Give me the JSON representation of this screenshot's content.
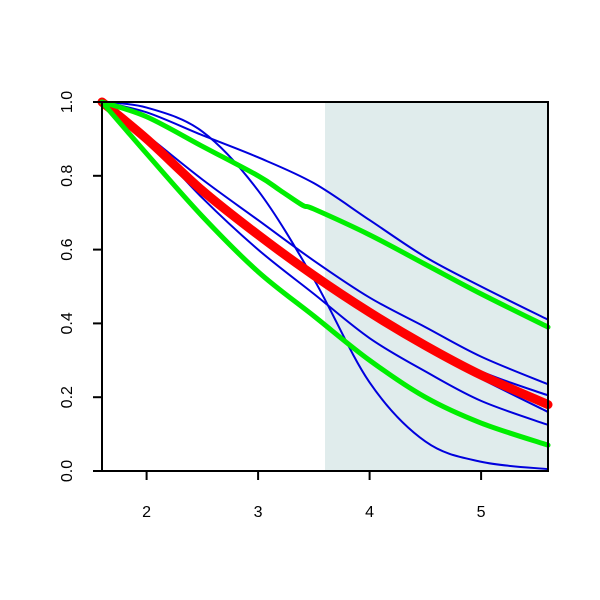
{
  "chart_data": {
    "type": "line",
    "title": "",
    "xlabel": "",
    "ylabel": "",
    "xlim": [
      1.6,
      5.6
    ],
    "ylim": [
      0.0,
      1.0
    ],
    "x_ticks": [
      2,
      3,
      4,
      5
    ],
    "x_tick_labels": [
      "2",
      "3",
      "4",
      "5"
    ],
    "y_ticks": [
      0.0,
      0.2,
      0.4,
      0.6,
      0.8,
      1.0
    ],
    "y_tick_labels": [
      "0.0",
      "0.2",
      "0.4",
      "0.6",
      "0.8",
      "1.0"
    ],
    "grid": false,
    "legend": "none",
    "shaded_region": {
      "x_from": 3.6,
      "x_to": 5.6,
      "color": "#e0ecec"
    },
    "series": [
      {
        "color": "#0000dd",
        "x": [
          1.6,
          2.0,
          2.5,
          3.0,
          3.5,
          4.0,
          4.5,
          5.0,
          5.6
        ],
        "values": [
          1.0,
          0.972,
          0.91,
          0.85,
          0.78,
          0.68,
          0.58,
          0.5,
          0.41
        ]
      },
      {
        "color": "#0000dd",
        "x": [
          1.6,
          2.0,
          2.5,
          3.0,
          3.5,
          4.0,
          4.5,
          5.0,
          5.6
        ],
        "values": [
          1.0,
          0.91,
          0.79,
          0.68,
          0.57,
          0.47,
          0.39,
          0.31,
          0.235
        ]
      },
      {
        "color": "#0000dd",
        "x": [
          1.6,
          2.0,
          2.5,
          3.0,
          3.5,
          4.0,
          4.5,
          5.0,
          5.6
        ],
        "values": [
          1.0,
          0.91,
          0.77,
          0.65,
          0.54,
          0.44,
          0.35,
          0.27,
          0.205
        ]
      },
      {
        "color": "#0000dd",
        "x": [
          1.6,
          2.0,
          2.5,
          3.0,
          3.5,
          4.0,
          4.5,
          5.0,
          5.6
        ],
        "values": [
          1.0,
          0.9,
          0.76,
          0.63,
          0.52,
          0.42,
          0.33,
          0.25,
          0.16
        ]
      },
      {
        "color": "#0000dd",
        "x": [
          1.6,
          2.0,
          2.5,
          3.0,
          3.5,
          4.0,
          4.5,
          5.0,
          5.6
        ],
        "values": [
          1.0,
          0.9,
          0.74,
          0.6,
          0.48,
          0.36,
          0.27,
          0.19,
          0.125
        ]
      },
      {
        "color": "#0000dd",
        "x": [
          1.6,
          2.0,
          2.5,
          3.0,
          3.5,
          4.0,
          4.5,
          5.0,
          5.6
        ],
        "values": [
          1.0,
          0.985,
          0.92,
          0.76,
          0.52,
          0.24,
          0.08,
          0.025,
          0.005
        ]
      },
      {
        "color": "#ff0000",
        "x": [
          1.6,
          2.0,
          2.5,
          3.0,
          3.5,
          4.0,
          4.5,
          5.0,
          5.6
        ],
        "values": [
          1.0,
          0.9,
          0.76,
          0.64,
          0.53,
          0.43,
          0.34,
          0.26,
          0.18
        ]
      },
      {
        "color": "#00ee00",
        "x": [
          1.6,
          2.0,
          2.5,
          3.0,
          3.2,
          3.4,
          3.5,
          4.0,
          4.5,
          5.0,
          5.6
        ],
        "values": [
          1.0,
          0.96,
          0.88,
          0.8,
          0.76,
          0.72,
          0.71,
          0.64,
          0.56,
          0.48,
          0.39
        ]
      },
      {
        "color": "#00ee00",
        "x": [
          1.6,
          2.0,
          2.5,
          3.0,
          3.5,
          4.0,
          4.5,
          5.0,
          5.6
        ],
        "values": [
          1.0,
          0.86,
          0.69,
          0.54,
          0.42,
          0.3,
          0.2,
          0.13,
          0.07
        ]
      }
    ]
  }
}
